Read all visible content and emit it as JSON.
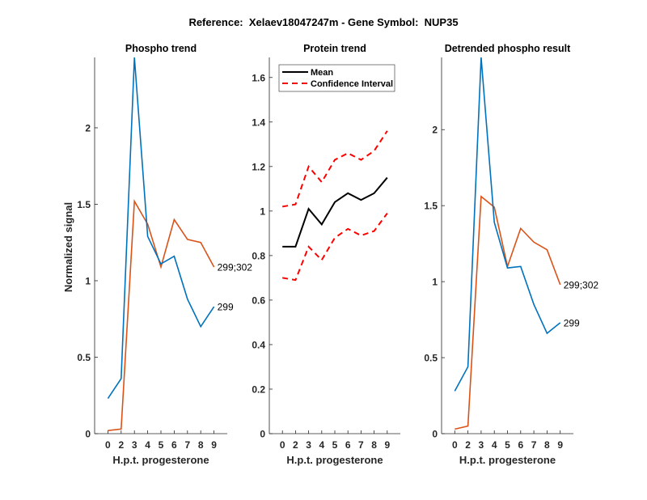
{
  "figure_title": "Reference:  Xelaev18047247m - Gene Symbol:  NUP35",
  "colors": {
    "blue": "#0072BD",
    "orange": "#D95319",
    "black": "#000000",
    "red": "#FF0000",
    "axis": "#262626"
  },
  "chart_data": [
    {
      "type": "line",
      "title": "Phospho trend",
      "xlabel": "H.p.t. progesterone",
      "ylabel": "Normalized signal",
      "categories": [
        "0",
        "2",
        "3",
        "4",
        "5",
        "6",
        "7",
        "8",
        "9"
      ],
      "ylim": [
        0,
        2.46
      ],
      "yticks": [
        0,
        0.5,
        1,
        1.5,
        2
      ],
      "ytick_labels": [
        "0",
        "0.5",
        "1",
        "1.5",
        "2"
      ],
      "grid": false,
      "series": [
        {
          "name": "299;302",
          "color": "#D95319",
          "style": "solid",
          "label": "299;302",
          "values": [
            0.02,
            0.03,
            1.52,
            1.37,
            1.09,
            1.4,
            1.27,
            1.25,
            1.09
          ]
        },
        {
          "name": "299",
          "color": "#0072BD",
          "style": "solid",
          "label": "299",
          "values": [
            0.23,
            0.36,
            2.46,
            1.29,
            1.11,
            1.16,
            0.88,
            0.7,
            0.83
          ]
        }
      ]
    },
    {
      "type": "line",
      "title": "Protein trend",
      "xlabel": "H.p.t. progesterone",
      "ylabel": "",
      "categories": [
        "0",
        "2",
        "3",
        "4",
        "5",
        "6",
        "7",
        "8",
        "9"
      ],
      "ylim": [
        0,
        1.69
      ],
      "yticks": [
        0,
        0.2,
        0.4,
        0.6,
        0.8,
        1,
        1.2,
        1.4,
        1.6
      ],
      "ytick_labels": [
        "0",
        "0.2",
        "0.4",
        "0.6",
        "0.8",
        "1",
        "1.2",
        "1.4",
        "1.6"
      ],
      "grid": false,
      "legend": {
        "position": "top-left",
        "entries": [
          "Mean",
          "Confidence Interval"
        ]
      },
      "series": [
        {
          "name": "Mean",
          "color": "#000000",
          "style": "solid",
          "values": [
            0.84,
            0.84,
            1.01,
            0.94,
            1.04,
            1.08,
            1.05,
            1.08,
            1.15
          ]
        },
        {
          "name": "Confidence Interval",
          "color": "#FF0000",
          "style": "dashed",
          "values": [
            1.02,
            1.03,
            1.2,
            1.13,
            1.23,
            1.26,
            1.23,
            1.27,
            1.36
          ]
        },
        {
          "name": "Confidence Interval (lower)",
          "color": "#FF0000",
          "style": "dashed",
          "values": [
            0.7,
            0.69,
            0.84,
            0.78,
            0.88,
            0.92,
            0.89,
            0.91,
            0.99
          ]
        }
      ]
    },
    {
      "type": "line",
      "title": "Detrended phospho result",
      "xlabel": "H.p.t. progesterone",
      "ylabel": "",
      "categories": [
        "0",
        "2",
        "3",
        "4",
        "5",
        "6",
        "7",
        "8",
        "9"
      ],
      "ylim": [
        0,
        2.475
      ],
      "yticks": [
        0,
        0.5,
        1,
        1.5,
        2
      ],
      "ytick_labels": [
        "0",
        "0.5",
        "1",
        "1.5",
        "2"
      ],
      "grid": false,
      "series": [
        {
          "name": "299;302",
          "color": "#D95319",
          "style": "solid",
          "label": "299;302",
          "values": [
            0.03,
            0.05,
            1.56,
            1.49,
            1.1,
            1.35,
            1.26,
            1.21,
            0.98
          ]
        },
        {
          "name": "299",
          "color": "#0072BD",
          "style": "solid",
          "label": "299",
          "values": [
            0.28,
            0.44,
            2.475,
            1.39,
            1.09,
            1.1,
            0.85,
            0.66,
            0.73
          ]
        }
      ]
    }
  ]
}
